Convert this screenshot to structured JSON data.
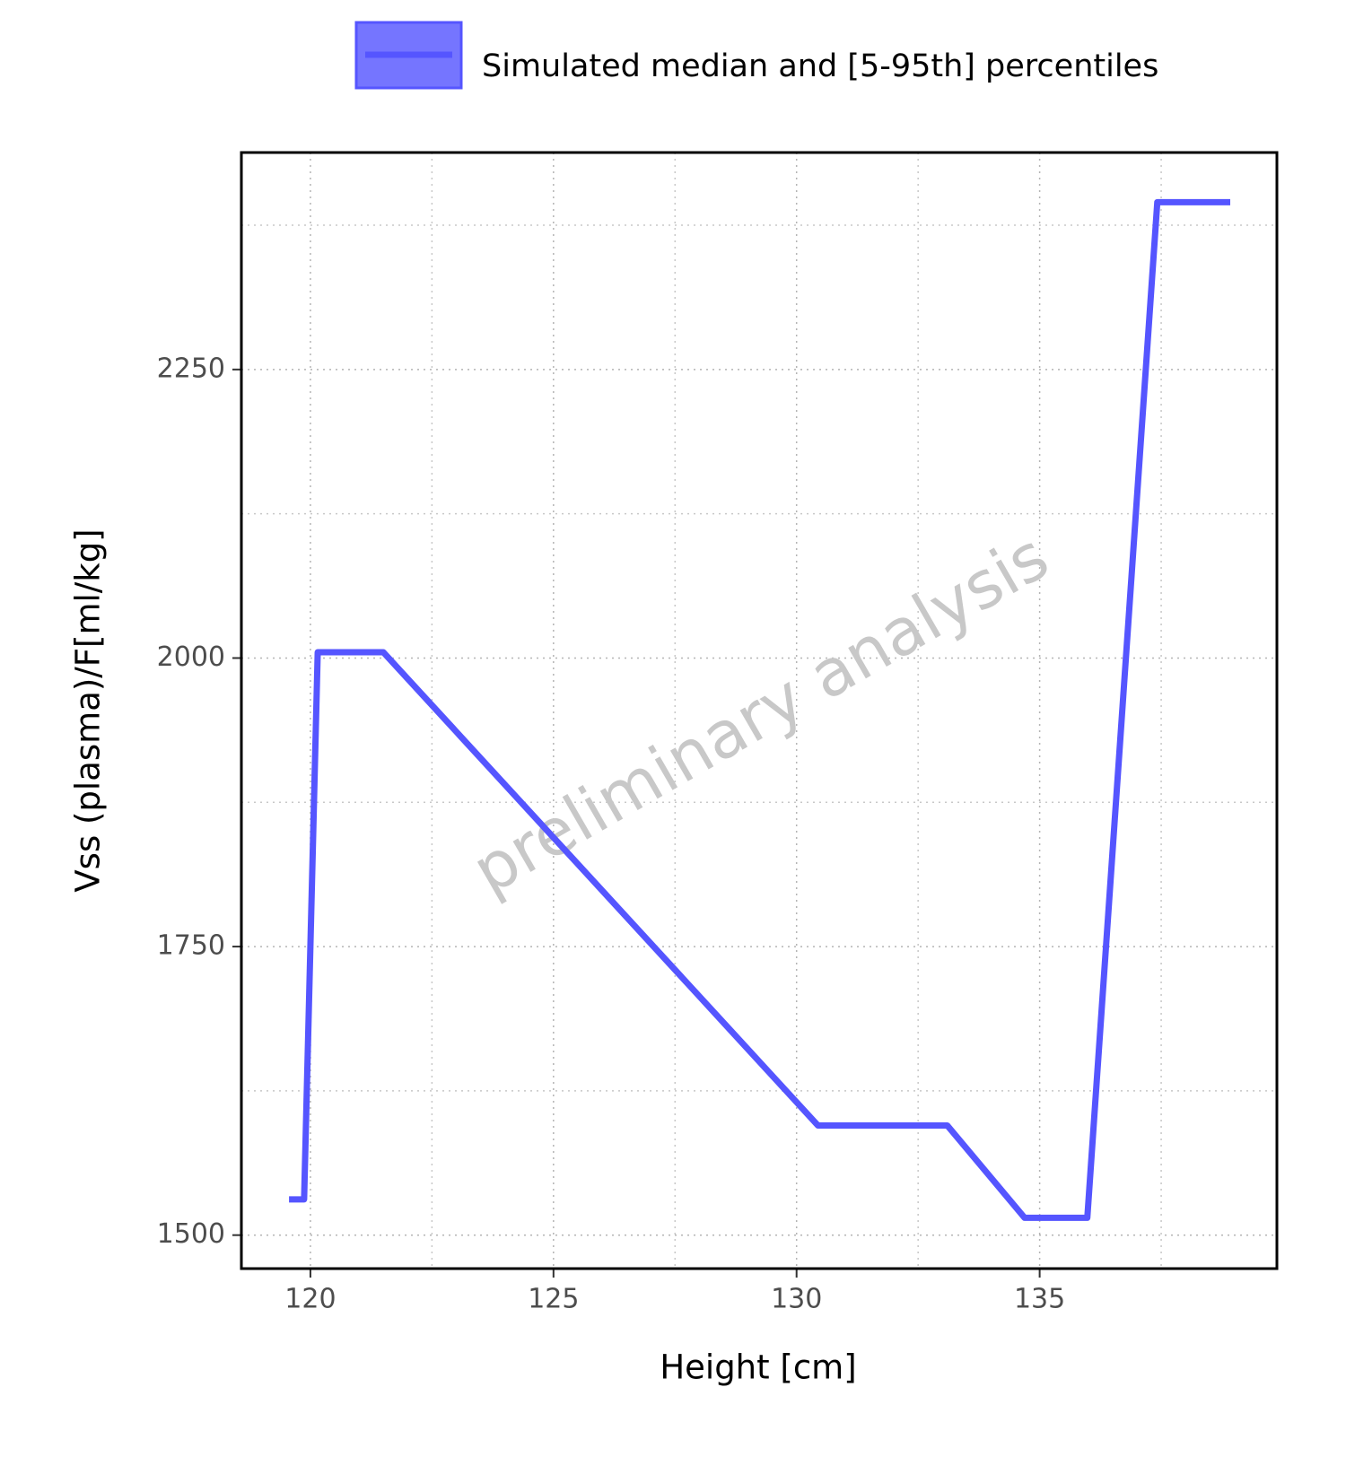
{
  "chart_data": {
    "type": "line",
    "x_label": "Height [cm]",
    "y_label": "Vss (plasma)/F[ml/kg]",
    "watermark": "preliminary analysis",
    "x": [
      119.56,
      119.87,
      120.15,
      121.5,
      130.44,
      133.1,
      134.69,
      135.98,
      137.42,
      138.92
    ],
    "series": [
      {
        "name": "Simulated median and [5-95th] percentiles",
        "color": "#5555ff",
        "values": [
          1531,
          1531,
          2005,
          2005,
          1595,
          1595,
          1515,
          1515,
          2395,
          2395
        ]
      }
    ],
    "xlim": [
      118.58,
      139.88
    ],
    "ylim": [
      1471,
      2438
    ],
    "xticks": [
      120,
      125,
      130,
      135
    ],
    "yticks": [
      1500,
      1750,
      2000,
      2250
    ],
    "x_minor_grid": [
      122.5,
      127.5,
      132.5,
      137.5
    ],
    "y_minor_grid": [
      1625,
      1875,
      2125,
      2375
    ],
    "grid": true
  }
}
